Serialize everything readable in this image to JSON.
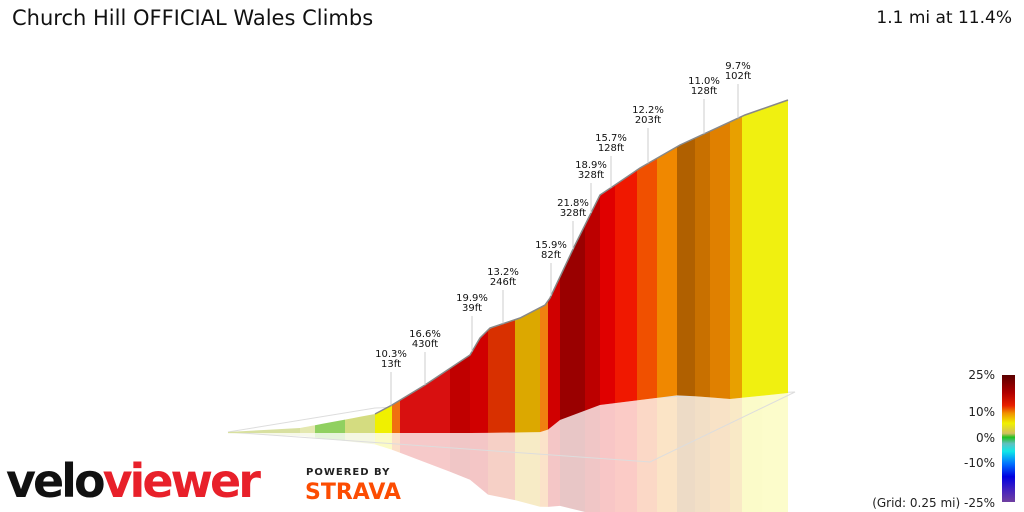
{
  "header": {
    "title": "Church Hill OFFICIAL Wales Climbs",
    "summary": "1.1 mi at 11.4%"
  },
  "chart_data": {
    "type": "area",
    "style": "3d-elevation-profile",
    "annotations": [
      {
        "grade": "10.3%",
        "length": "13ft"
      },
      {
        "grade": "16.6%",
        "length": "430ft"
      },
      {
        "grade": "19.9%",
        "length": "39ft"
      },
      {
        "grade": "13.2%",
        "length": "246ft"
      },
      {
        "grade": "15.9%",
        "length": "82ft"
      },
      {
        "grade": "21.8%",
        "length": "328ft"
      },
      {
        "grade": "18.9%",
        "length": "328ft"
      },
      {
        "grade": "15.7%",
        "length": "128ft"
      },
      {
        "grade": "12.2%",
        "length": "203ft"
      },
      {
        "grade": "11.0%",
        "length": "128ft"
      },
      {
        "grade": "9.7%",
        "length": "102ft"
      }
    ],
    "segment_colors": [
      "#d8e0a0",
      "#e4e8b0",
      "#90d060",
      "#d4dc80",
      "#f0f000",
      "#f07010",
      "#d81010",
      "#c00000",
      "#d00000",
      "#d83000",
      "#dca800",
      "#f08010",
      "#d00000",
      "#9a0000",
      "#bc0000",
      "#e00000",
      "#f01800",
      "#f05000",
      "#f08800",
      "#b06000",
      "#c87000",
      "#e08000",
      "#e8a000",
      "#f0f010"
    ]
  },
  "legend": {
    "ticks": [
      "25%",
      "10%",
      "0%",
      "-10%",
      "-25%"
    ],
    "grid_note": "(Grid: 0.25 mi)"
  },
  "branding": {
    "logo_left": "velo",
    "logo_right": "viewer",
    "powered_by": "POWERED BY",
    "strava": "STRAVA"
  }
}
